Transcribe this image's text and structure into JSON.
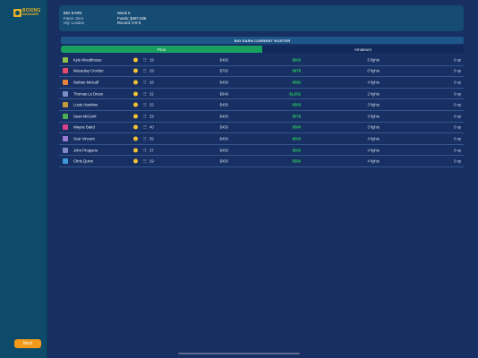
{
  "sidebar": {
    "logo_line1": "BOXING",
    "logo_line2": "MANAGER",
    "next_label": "Next"
  },
  "info": {
    "gym_name": "BIG EARN",
    "fame": "Fame: Zero",
    "hq": "HQ: London",
    "week": "Week 6",
    "funds": "Funds:  $487,635",
    "record": "Record:  0-0-0"
  },
  "roster": {
    "title": "BIG EARN CURRENT ROSTER",
    "tabs": [
      "Pros",
      "Amateurs"
    ],
    "fighters": [
      {
        "name": "Kyle Woodhouse",
        "age": "19",
        "salary": "$450",
        "earn": "$503",
        "fights": "5 fights",
        "xp": "0 xp",
        "color": "#8bc34a"
      },
      {
        "name": "Macaulay Crocker",
        "age": "29",
        "salary": "$782",
        "earn": "$878",
        "fights": "0 fights",
        "xp": "0 xp",
        "color": "#e74c6b"
      },
      {
        "name": "Nathan Metcalf",
        "age": "28",
        "salary": "$450",
        "earn": "$582",
        "fights": "4 fights",
        "xp": "0 xp",
        "color": "#e5843a"
      },
      {
        "name": "Thomas Le Dreux",
        "age": "32",
        "salary": "$849",
        "earn": "$1,051",
        "fights": "2 fights",
        "xp": "0 xp",
        "color": "#7b8cc9"
      },
      {
        "name": "Louie Hawkins",
        "age": "32",
        "salary": "$450",
        "earn": "$503",
        "fights": "3 fights",
        "xp": "0 xp",
        "color": "#c59b3a"
      },
      {
        "name": "Sean McGurk",
        "age": "29",
        "salary": "$460",
        "earn": "$578",
        "fights": "3 fights",
        "xp": "0 xp",
        "color": "#4caf50"
      },
      {
        "name": "Wayne Baird",
        "age": "40",
        "salary": "$450",
        "earn": "$500",
        "fights": "3 fights",
        "xp": "0 xp",
        "color": "#d9418a"
      },
      {
        "name": "Scar Vincent",
        "age": "35",
        "salary": "$450",
        "earn": "$503",
        "fights": "4 fights",
        "xp": "0 xp",
        "color": "#9c7bd6"
      },
      {
        "name": "John Proppers",
        "age": "37",
        "salary": "$450",
        "earn": "$503",
        "fights": "4 fights",
        "xp": "0 xp",
        "color": "#7f8ac7"
      },
      {
        "name": "Chris Quinn",
        "age": "29",
        "salary": "$450",
        "earn": "$503",
        "fights": "4 fights",
        "xp": "0 xp",
        "color": "#3e9ad6"
      }
    ]
  }
}
